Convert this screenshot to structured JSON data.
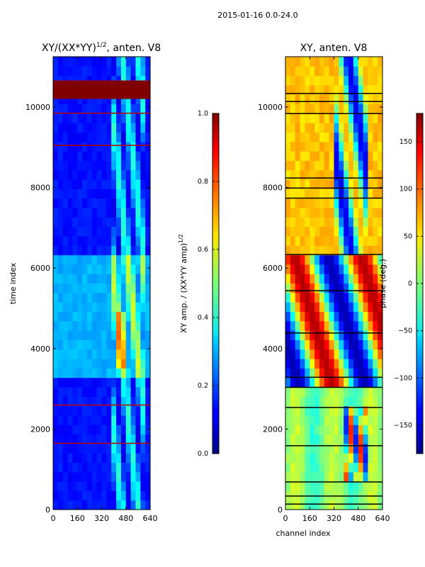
{
  "figure": {
    "suptitle": "2015-01-16 0.0-24.0"
  },
  "chart_data": [
    {
      "type": "heatmap",
      "title": "XY/(XX*YY)",
      "title_superscript": "1/2",
      "title_suffix": ", anten. V8",
      "xlabel": "",
      "ylabel": "time index",
      "xlim": [
        0,
        640
      ],
      "ylim": [
        0,
        11250
      ],
      "xticks": [
        0,
        160,
        320,
        480,
        640
      ],
      "yticks": [
        0,
        2000,
        4000,
        6000,
        8000,
        10000
      ],
      "colormap": "jet",
      "colorbar": {
        "label": "XY amp. / (XX*YY amp)",
        "label_superscript": "1/2",
        "range": [
          0.0,
          1.0
        ],
        "ticks": [
          "0.0",
          "0.2",
          "0.4",
          "0.6",
          "0.8",
          "1.0"
        ]
      },
      "grid": false
    },
    {
      "type": "heatmap",
      "title": "XY, anten. V8",
      "xlabel": "channel index",
      "ylabel": "",
      "xlim": [
        0,
        640
      ],
      "ylim": [
        0,
        11250
      ],
      "xticks": [
        0,
        160,
        320,
        480,
        640
      ],
      "yticks": [
        0,
        2000,
        4000,
        6000,
        8000,
        10000
      ],
      "colormap": "jet",
      "colorbar": {
        "label": "phase (deg.)",
        "range": [
          -180,
          180
        ],
        "ticks": [
          "150",
          "100",
          "50",
          "0",
          "−50",
          "−100",
          "−150"
        ]
      },
      "grid": false
    }
  ]
}
